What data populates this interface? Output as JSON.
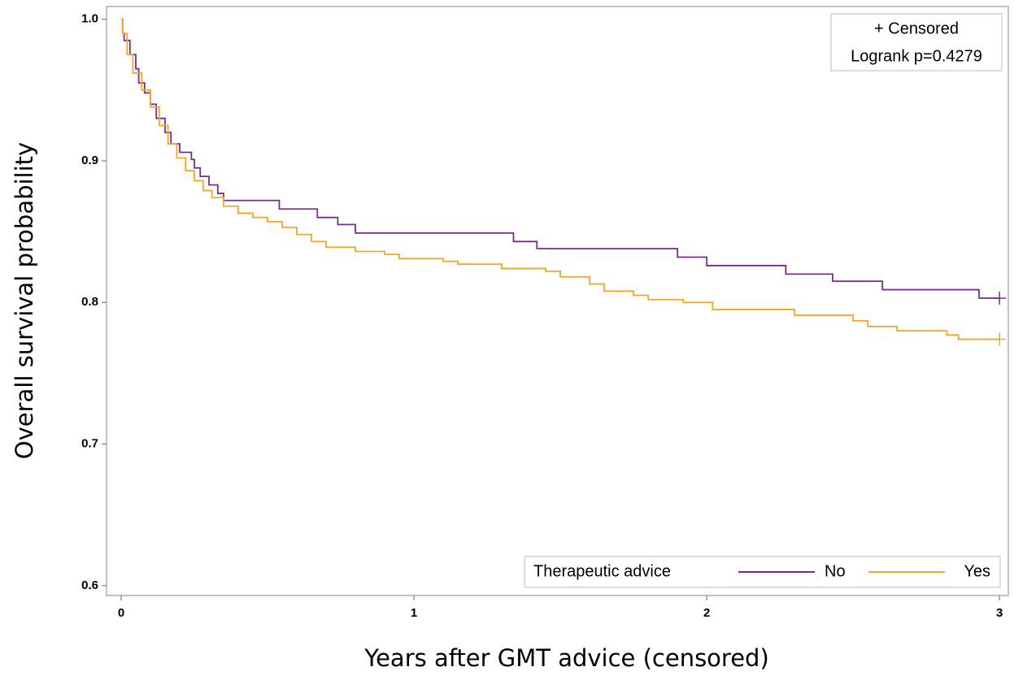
{
  "chart_data": {
    "type": "step",
    "x_label": "Years after GMT advice (censored)",
    "y_label": "Overall survival probability",
    "xlim": [
      -0.05,
      3.03
    ],
    "ylim": [
      0.593,
      1.009
    ],
    "xticks": [
      0,
      1,
      2,
      3
    ],
    "yticks": [
      0.6,
      0.7,
      0.8,
      0.9,
      {
        "value": 1.0,
        "label": "1.0"
      }
    ],
    "inset": [
      "+ Censored",
      "Logrank p=0.4279"
    ],
    "legend_title": "Therapeutic advice",
    "legend": "lower right",
    "series": [
      {
        "name": "No",
        "color": "#7b2d8e",
        "x": [
          0,
          0.005,
          0.01,
          0.03,
          0.05,
          0.06,
          0.08,
          0.1,
          0.12,
          0.15,
          0.17,
          0.2,
          0.24,
          0.25,
          0.27,
          0.3,
          0.33,
          0.35,
          0.54,
          0.67,
          0.74,
          0.8,
          1.34,
          1.42,
          1.9,
          2.0,
          2.27,
          2.43,
          2.6,
          2.93,
          3.0
        ],
        "values": [
          1.0,
          0.99,
          0.985,
          0.975,
          0.965,
          0.955,
          0.948,
          0.94,
          0.93,
          0.92,
          0.912,
          0.906,
          0.901,
          0.895,
          0.889,
          0.883,
          0.877,
          0.872,
          0.866,
          0.86,
          0.855,
          0.849,
          0.843,
          0.838,
          0.832,
          0.826,
          0.82,
          0.815,
          0.809,
          0.803,
          0.803
        ]
      },
      {
        "name": "Yes",
        "color": "#f5a623",
        "x": [
          0,
          0.005,
          0.02,
          0.04,
          0.07,
          0.1,
          0.13,
          0.16,
          0.19,
          0.22,
          0.25,
          0.28,
          0.31,
          0.35,
          0.4,
          0.45,
          0.5,
          0.55,
          0.6,
          0.65,
          0.7,
          0.8,
          0.9,
          0.95,
          1.1,
          1.15,
          1.3,
          1.45,
          1.5,
          1.6,
          1.65,
          1.75,
          1.8,
          1.92,
          2.02,
          2.3,
          2.5,
          2.55,
          2.65,
          2.82,
          2.86,
          3.0
        ],
        "values": [
          1.0,
          0.99,
          0.975,
          0.962,
          0.95,
          0.938,
          0.925,
          0.912,
          0.902,
          0.893,
          0.886,
          0.879,
          0.874,
          0.868,
          0.863,
          0.86,
          0.857,
          0.853,
          0.848,
          0.843,
          0.839,
          0.836,
          0.834,
          0.831,
          0.829,
          0.827,
          0.824,
          0.822,
          0.818,
          0.813,
          0.808,
          0.805,
          0.802,
          0.8,
          0.795,
          0.791,
          0.787,
          0.783,
          0.78,
          0.777,
          0.774,
          0.774
        ]
      }
    ]
  }
}
